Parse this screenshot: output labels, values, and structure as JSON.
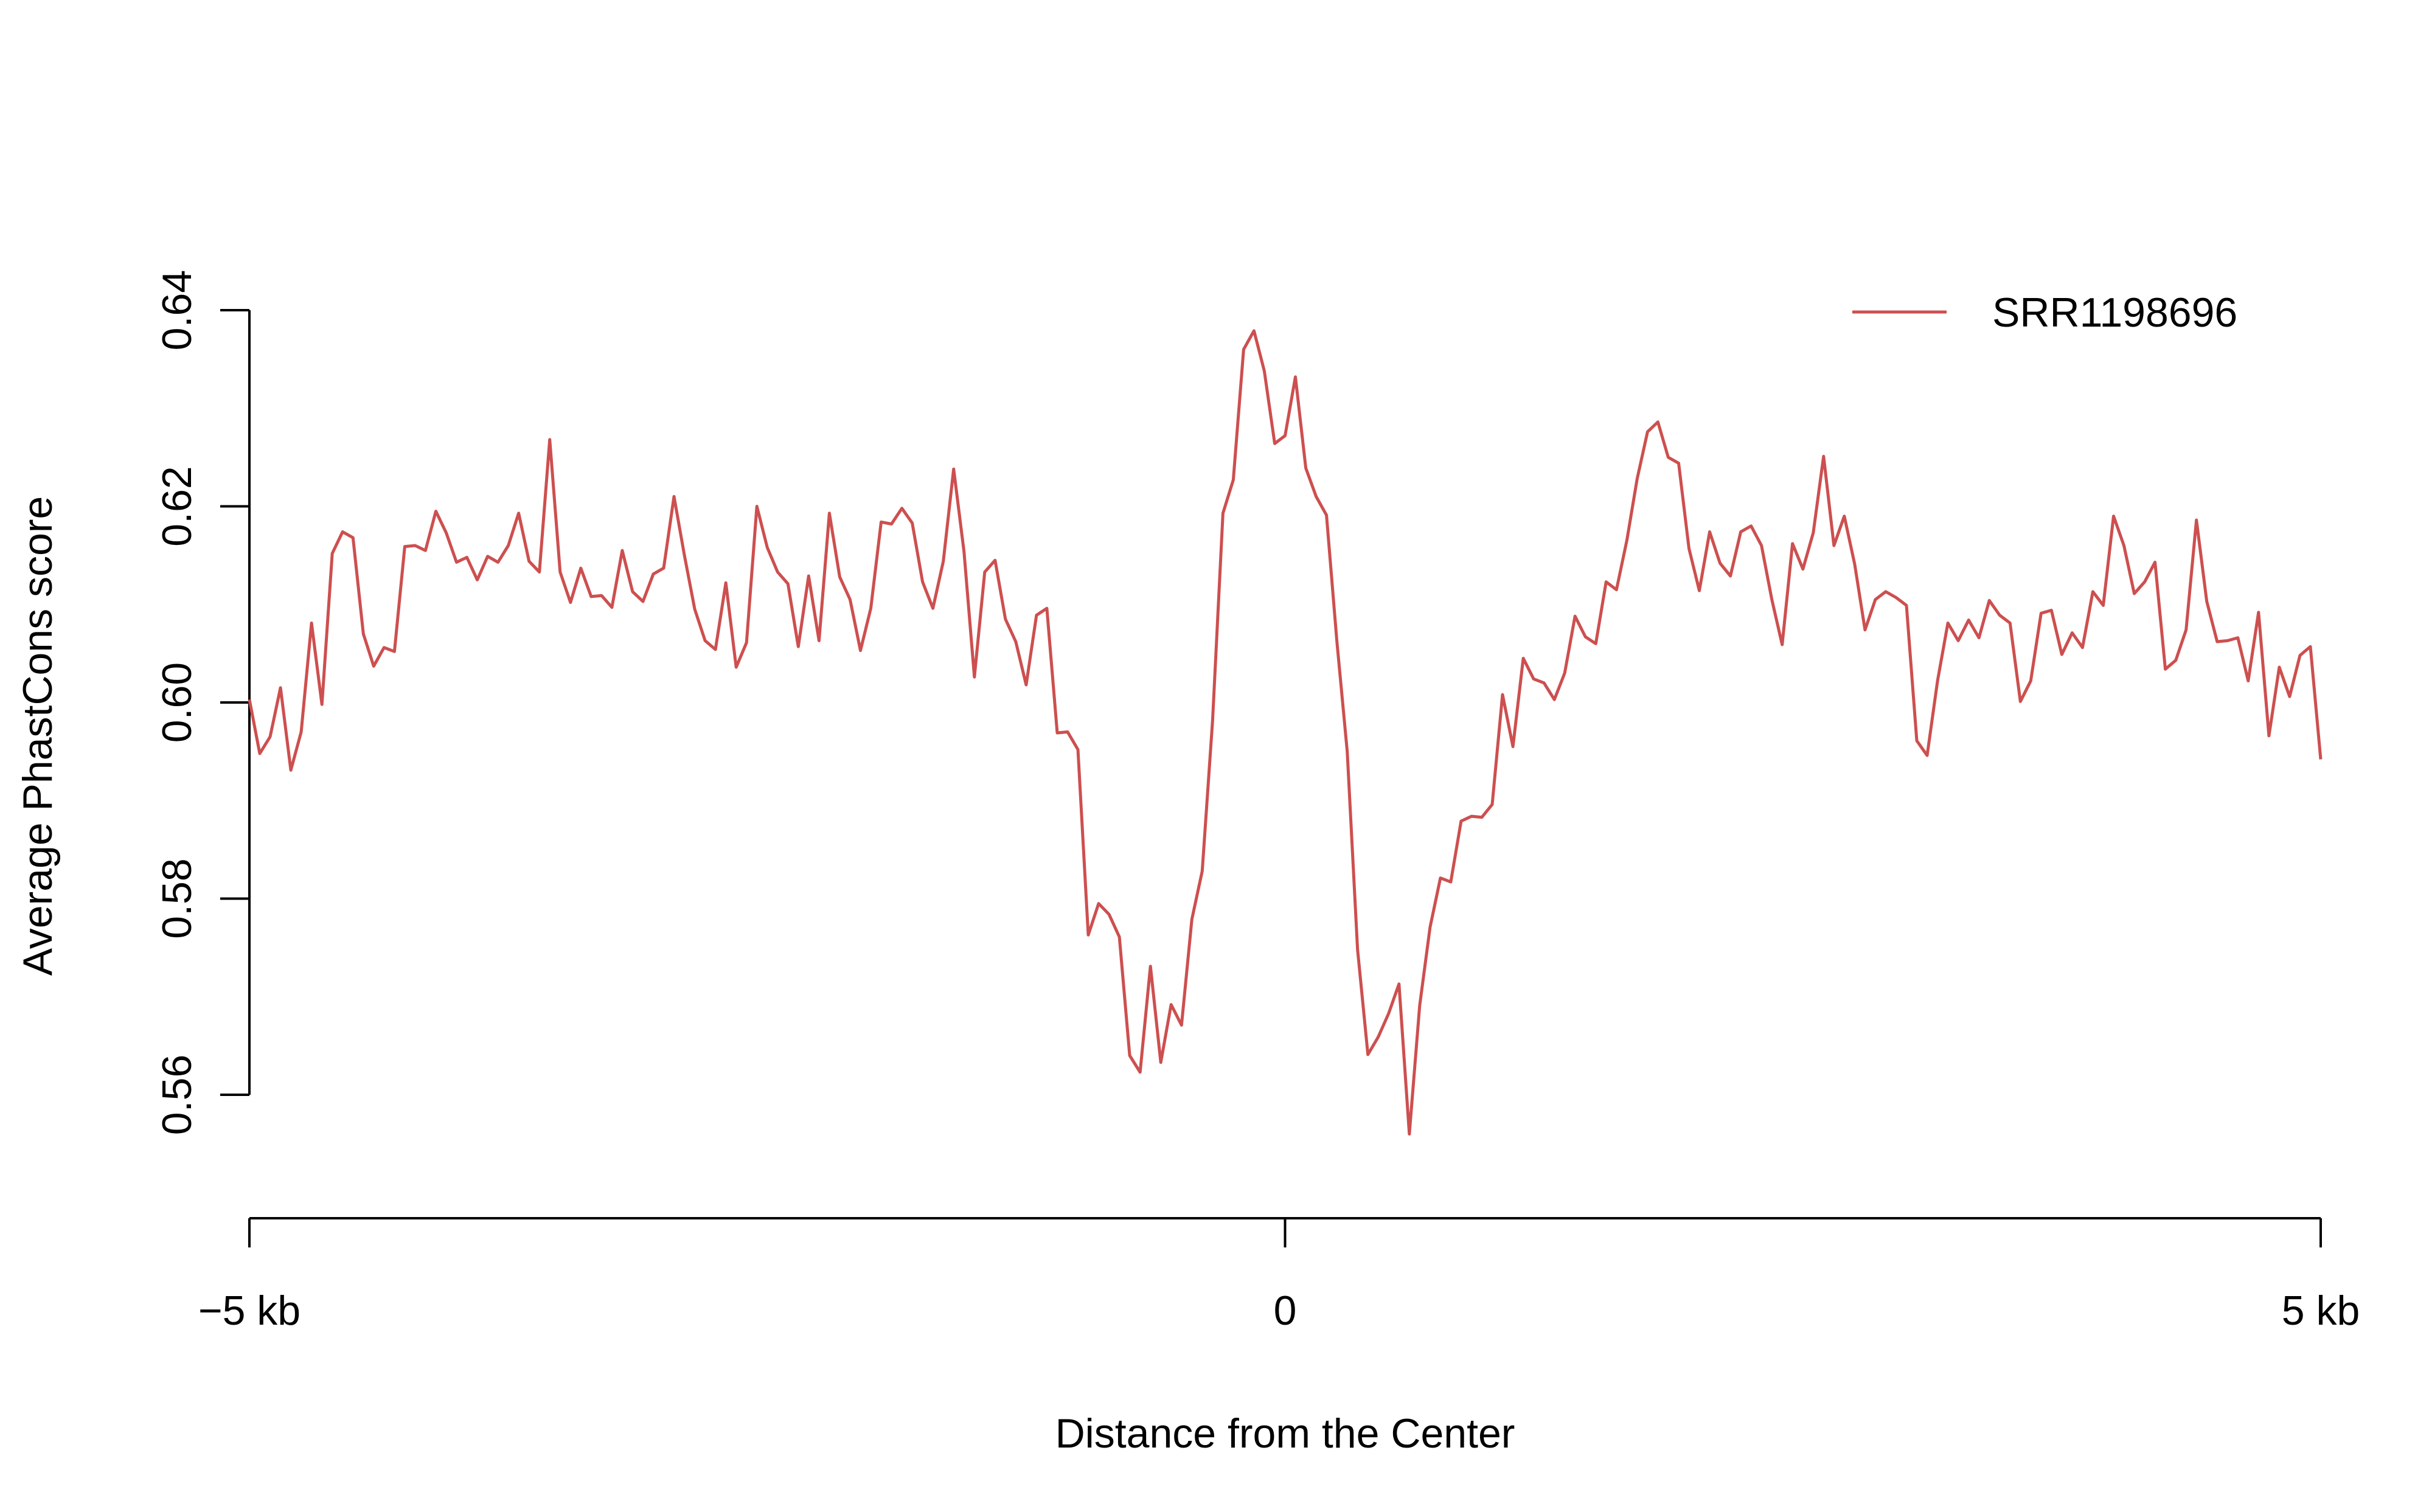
{
  "chart_data": {
    "type": "line",
    "title": "",
    "xlabel": "Distance from the Center",
    "ylabel": "Average PhastCons score",
    "xlim": [
      -5,
      5
    ],
    "ylim": [
      0.556,
      0.64
    ],
    "x_ticks": [
      {
        "value": -5,
        "label": "−5 kb"
      },
      {
        "value": 0,
        "label": "0"
      },
      {
        "value": 5,
        "label": "5 kb"
      }
    ],
    "y_ticks": [
      {
        "value": 0.56,
        "label": "0.56"
      },
      {
        "value": 0.58,
        "label": "0.58"
      },
      {
        "value": 0.6,
        "label": "0.60"
      },
      {
        "value": 0.62,
        "label": "0.62"
      },
      {
        "value": 0.64,
        "label": "0.64"
      }
    ],
    "legend_position": "top-right",
    "grid": false,
    "series": [
      {
        "name": "SRR1198696",
        "color": "#cd4f4f",
        "x_start": -5,
        "x_end": 5,
        "values": [
          0.6003,
          0.5948,
          0.5965,
          0.6015,
          0.5931,
          0.597,
          0.6081,
          0.5998,
          0.6152,
          0.6174,
          0.6168,
          0.607,
          0.6037,
          0.6056,
          0.6052,
          0.6159,
          0.616,
          0.6155,
          0.6195,
          0.6173,
          0.6143,
          0.6148,
          0.6125,
          0.6149,
          0.6143,
          0.616,
          0.6193,
          0.6144,
          0.6133,
          0.6268,
          0.6133,
          0.6102,
          0.6137,
          0.6108,
          0.6109,
          0.6097,
          0.6155,
          0.6113,
          0.6103,
          0.6131,
          0.6137,
          0.621,
          0.615,
          0.6095,
          0.6063,
          0.6054,
          0.6122,
          0.6036,
          0.6061,
          0.62,
          0.6158,
          0.6133,
          0.6121,
          0.6057,
          0.6129,
          0.6063,
          0.6193,
          0.6128,
          0.6105,
          0.6053,
          0.6096,
          0.6184,
          0.6182,
          0.6198,
          0.6183,
          0.6123,
          0.6096,
          0.6144,
          0.6238,
          0.6154,
          0.6026,
          0.6133,
          0.6145,
          0.6085,
          0.6062,
          0.6018,
          0.6089,
          0.6096,
          0.5969,
          0.597,
          0.5952,
          0.5763,
          0.5795,
          0.5784,
          0.5761,
          0.564,
          0.5623,
          0.5731,
          0.5633,
          0.5692,
          0.5671,
          0.5779,
          0.5828,
          0.5981,
          0.6193,
          0.6227,
          0.636,
          0.6379,
          0.6338,
          0.6264,
          0.6272,
          0.6332,
          0.6239,
          0.621,
          0.6191,
          0.6063,
          0.595,
          0.5748,
          0.5641,
          0.5659,
          0.5683,
          0.5713,
          0.556,
          0.5691,
          0.5771,
          0.5821,
          0.5817,
          0.5879,
          0.5884,
          0.5883,
          0.5896,
          0.6008,
          0.5955,
          0.6045,
          0.6024,
          0.602,
          0.6003,
          0.603,
          0.6088,
          0.6067,
          0.606,
          0.6123,
          0.6115,
          0.6165,
          0.6228,
          0.6276,
          0.6286,
          0.625,
          0.6244,
          0.6157,
          0.6114,
          0.6174,
          0.6142,
          0.6129,
          0.6174,
          0.618,
          0.616,
          0.6105,
          0.6059,
          0.6162,
          0.6136,
          0.6173,
          0.6251,
          0.616,
          0.619,
          0.6141,
          0.6074,
          0.6105,
          0.6113,
          0.6107,
          0.6099,
          0.5961,
          0.5946,
          0.6022,
          0.6081,
          0.6063,
          0.6084,
          0.6066,
          0.6104,
          0.6089,
          0.6081,
          0.6001,
          0.6022,
          0.6091,
          0.6094,
          0.6049,
          0.6071,
          0.6056,
          0.6113,
          0.6099,
          0.619,
          0.616,
          0.6111,
          0.6123,
          0.6143,
          0.6034,
          0.6043,
          0.6074,
          0.6186,
          0.6103,
          0.6062,
          0.6063,
          0.6066,
          0.6022,
          0.6092,
          0.5966,
          0.6036,
          0.6006,
          0.6048,
          0.6057,
          0.5942
        ]
      }
    ]
  }
}
